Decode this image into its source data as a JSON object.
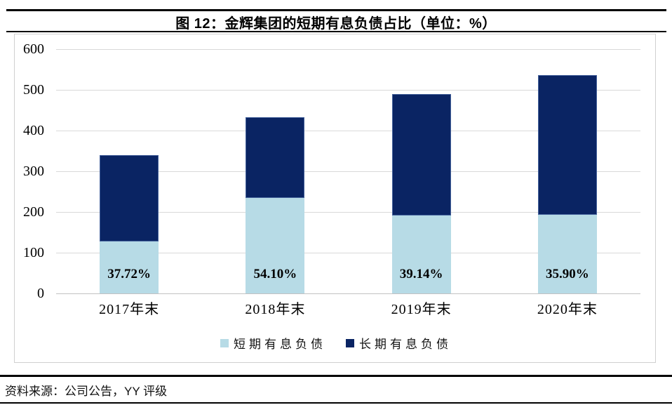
{
  "page": {
    "source_note": "资料来源：公司公告，YY 评级"
  },
  "chart_data": {
    "type": "bar",
    "subtype": "stacked",
    "title": "图 12：金辉集团的短期有息负债占比（单位：%）",
    "categories": [
      "2017年末",
      "2018年末",
      "2019年末",
      "2020年末"
    ],
    "series": [
      {
        "name": "短期有息负债",
        "color": "#B7DBE6",
        "values": [
          128,
          234,
          192,
          193
        ]
      },
      {
        "name": "长期有息负债",
        "color": "#0A2463",
        "values": [
          212,
          198,
          298,
          344
        ]
      }
    ],
    "bar_labels": [
      "37.72%",
      "54.10%",
      "39.14%",
      "35.90%"
    ],
    "bar_label_series": "短期有息负债",
    "totals": [
      340,
      432,
      490,
      537
    ],
    "ylim": [
      0,
      600
    ],
    "yticks": [
      0,
      100,
      200,
      300,
      400,
      500,
      600
    ],
    "grid": "horizontal",
    "legend_position": "bottom",
    "colors": {
      "short_term": "#B7DBE6",
      "long_term": "#0A2463",
      "gridline": "#D9D9D9",
      "rule": "#000000"
    }
  }
}
